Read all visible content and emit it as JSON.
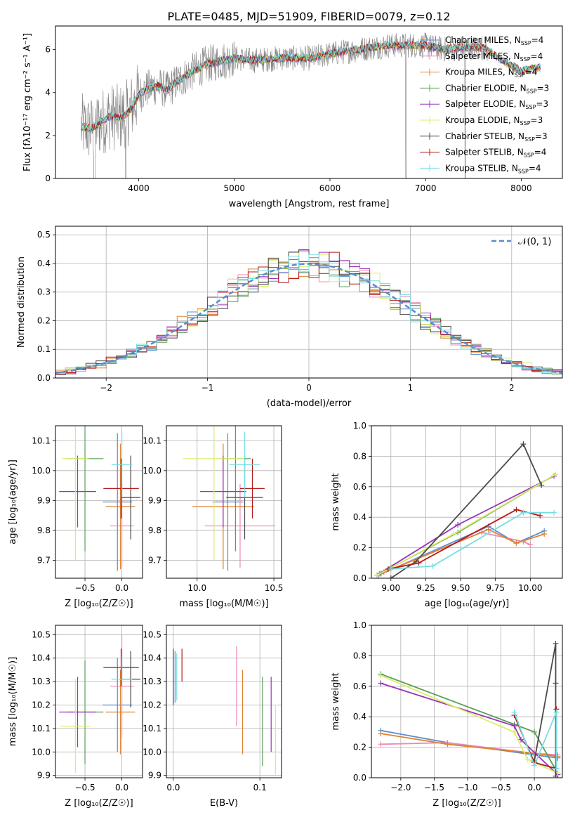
{
  "title": "PLATE=0485, MJD=51909, FIBERID=0079, z=0.12",
  "colors": {
    "Chabrier MILES": "#5b8ccf",
    "Salpeter MILES": "#ee88b8",
    "Kroupa MILES": "#e0822e",
    "Chabrier ELODIE": "#5a9e5a",
    "Salpeter ELODIE": "#9933bb",
    "Kroupa ELODIE": "#d8ef66",
    "Chabrier STELIB": "#4a4a4a",
    "Salpeter STELIB": "#b01818",
    "Kroupa STELIB": "#77dde2",
    "data": "#808080",
    "normal": "#5b8ccf"
  },
  "chart_data": [
    {
      "id": "spectrum",
      "type": "line",
      "xlabel": "wavelength [Angstrom, rest frame]",
      "ylabel": "Flux [fλ10⁻¹⁷ erg cm⁻² s⁻¹ A⁻¹]",
      "xlim": [
        3130,
        8430
      ],
      "ylim": [
        0,
        7.1
      ],
      "xticks": [
        4000,
        5000,
        6000,
        7000,
        8000
      ],
      "yticks": [
        0,
        2,
        4,
        6
      ],
      "legend_position": "top-right",
      "legend": [
        {
          "label": "Chabrier MILES, N",
          "sub": "SSP",
          "tail": "=4"
        },
        {
          "label": "Salpeter MILES, N",
          "sub": "SSP",
          "tail": "=4"
        },
        {
          "label": "Kroupa MILES, N",
          "sub": "SSP",
          "tail": "=4"
        },
        {
          "label": "Chabrier ELODIE, N",
          "sub": "SSP",
          "tail": "=3"
        },
        {
          "label": "Salpeter ELODIE, N",
          "sub": "SSP",
          "tail": "=3"
        },
        {
          "label": "Kroupa ELODIE, N",
          "sub": "SSP",
          "tail": "=3"
        },
        {
          "label": "Chabrier STELIB, N",
          "sub": "SSP",
          "tail": "=3"
        },
        {
          "label": "Salpeter STELIB, N",
          "sub": "SSP",
          "tail": "=4"
        },
        {
          "label": "Kroupa STELIB, N",
          "sub": "SSP",
          "tail": "=4"
        }
      ],
      "model_continuum": {
        "x": [
          3400,
          3500,
          3600,
          3700,
          3800,
          3900,
          4000,
          4100,
          4200,
          4300,
          4400,
          4500,
          4700,
          5000,
          5200,
          5500,
          5800,
          6000,
          6300,
          6600,
          6800,
          7000,
          7200,
          7400,
          7600,
          7800,
          8000,
          8200
        ],
        "y": [
          2.4,
          2.3,
          2.6,
          2.9,
          2.8,
          3.1,
          3.9,
          4.2,
          4.3,
          4.1,
          4.5,
          4.8,
          5.3,
          5.6,
          5.5,
          5.6,
          5.6,
          5.8,
          6.0,
          6.2,
          6.2,
          6.2,
          6.0,
          6.1,
          6.1,
          5.5,
          5.0,
          5.2
        ]
      }
    },
    {
      "id": "residuals",
      "type": "line",
      "xlabel": "(data-model)/error",
      "ylabel": "Normed distribution",
      "xlim": [
        -2.5,
        2.5
      ],
      "ylim": [
        0,
        0.53
      ],
      "xticks": [
        -2,
        -1,
        0,
        1,
        2
      ],
      "yticks": [
        0.0,
        0.1,
        0.2,
        0.3,
        0.4,
        0.5
      ],
      "legend": "𝒩(0, 1)",
      "legend_position": "top-right"
    },
    {
      "id": "Z_age",
      "type": "scatter",
      "xlabel": "Z [log₁₀(Z/Z☉)]",
      "ylabel": "age  [log₁₀(age/yr)]",
      "xlim": [
        -0.9,
        0.28
      ],
      "ylim": [
        9.64,
        10.15
      ],
      "xticks": [
        -0.5,
        0.0
      ],
      "yticks": [
        9.7,
        9.8,
        9.9,
        10.0,
        10.1
      ],
      "points": [
        {
          "model": "Chabrier MILES",
          "x": -0.06,
          "y": 9.895,
          "xerr": 0.2,
          "yerr": 0.23
        },
        {
          "model": "Salpeter MILES",
          "x": 0.0,
          "y": 9.815,
          "xerr": 0.16,
          "yerr": 0.14
        },
        {
          "model": "Kroupa MILES",
          "x": -0.02,
          "y": 9.88,
          "xerr": 0.2,
          "yerr": 0.21
        },
        {
          "model": "Chabrier ELODIE",
          "x": -0.5,
          "y": 10.04,
          "xerr": 0.25,
          "yerr": 0.31
        },
        {
          "model": "Salpeter ELODIE",
          "x": -0.6,
          "y": 9.93,
          "xerr": 0.25,
          "yerr": 0.12
        },
        {
          "model": "Kroupa ELODIE",
          "x": -0.63,
          "y": 10.04,
          "xerr": 0.18,
          "yerr": 0.34
        },
        {
          "model": "Chabrier STELIB",
          "x": 0.12,
          "y": 9.91,
          "xerr": 0.13,
          "yerr": 0.14
        },
        {
          "model": "Salpeter STELIB",
          "x": -0.01,
          "y": 9.94,
          "xerr": 0.24,
          "yerr": 0.1
        },
        {
          "model": "Kroupa STELIB",
          "x": 0.0,
          "y": 10.02,
          "xerr": 0.14,
          "yerr": 0.11
        }
      ]
    },
    {
      "id": "mass_age",
      "type": "scatter",
      "xlabel": "mass [log₁₀(M/M☉)]",
      "ylabel": "",
      "xlim": [
        9.8,
        10.55
      ],
      "ylim": [
        9.64,
        10.15
      ],
      "xticks": [
        10.0,
        10.5
      ],
      "yticks": [
        9.7,
        9.8,
        9.9,
        10.0,
        10.1
      ],
      "points": [
        {
          "model": "Chabrier MILES",
          "x": 10.2,
          "y": 9.895,
          "xerr": 0.1,
          "yerr": 0.23
        },
        {
          "model": "Salpeter MILES",
          "x": 10.28,
          "y": 9.815,
          "xerr": 0.23,
          "yerr": 0.14
        },
        {
          "model": "Kroupa MILES",
          "x": 10.17,
          "y": 9.88,
          "xerr": 0.2,
          "yerr": 0.21
        },
        {
          "model": "Chabrier ELODIE",
          "x": 10.25,
          "y": 10.04,
          "xerr": 0.1,
          "yerr": 0.31
        },
        {
          "model": "Salpeter ELODIE",
          "x": 10.17,
          "y": 9.93,
          "xerr": 0.15,
          "yerr": 0.12
        },
        {
          "model": "Kroupa ELODIE",
          "x": 10.11,
          "y": 10.04,
          "xerr": 0.2,
          "yerr": 0.34
        },
        {
          "model": "Chabrier STELIB",
          "x": 10.31,
          "y": 9.91,
          "xerr": 0.12,
          "yerr": 0.14
        },
        {
          "model": "Salpeter STELIB",
          "x": 10.36,
          "y": 9.94,
          "xerr": 0.08,
          "yerr": 0.1
        },
        {
          "model": "Kroupa STELIB",
          "x": 10.31,
          "y": 10.02,
          "xerr": 0.1,
          "yerr": 0.11
        }
      ]
    },
    {
      "id": "age_weights",
      "type": "line",
      "xlabel": "age  [log₁₀(age/yr)]",
      "ylabel": "mass weight",
      "xlim": [
        8.86,
        10.23
      ],
      "ylim": [
        0,
        1.0
      ],
      "xticks": [
        9.0,
        9.25,
        9.5,
        9.75,
        10.0
      ],
      "yticks": [
        0.0,
        0.2,
        0.4,
        0.6,
        0.8,
        1.0
      ],
      "series": [
        {
          "model": "Chabrier MILES",
          "x": [
            8.91,
            9.7,
            9.9,
            10.1
          ],
          "y": [
            0.02,
            0.34,
            0.23,
            0.31
          ]
        },
        {
          "model": "Salpeter MILES",
          "x": [
            8.95,
            9.65,
            9.95,
            10.0
          ],
          "y": [
            0.04,
            0.3,
            0.24,
            0.22
          ]
        },
        {
          "model": "Kroupa MILES",
          "x": [
            8.93,
            9.7,
            9.9,
            10.1
          ],
          "y": [
            0.03,
            0.32,
            0.23,
            0.29
          ]
        },
        {
          "model": "Chabrier ELODIE",
          "x": [
            8.92,
            9.48,
            10.18
          ],
          "y": [
            0.03,
            0.3,
            0.68
          ]
        },
        {
          "model": "Salpeter ELODIE",
          "x": [
            8.9,
            9.48,
            10.17
          ],
          "y": [
            0.02,
            0.35,
            0.67
          ]
        },
        {
          "model": "Kroupa ELODIE",
          "x": [
            8.9,
            9.45,
            10.18
          ],
          "y": [
            0.02,
            0.29,
            0.68
          ]
        },
        {
          "model": "Chabrier STELIB",
          "x": [
            9.0,
            9.18,
            9.95,
            10.08
          ],
          "y": [
            0.0,
            0.11,
            0.88,
            0.61
          ]
        },
        {
          "model": "Salpeter STELIB",
          "x": [
            8.98,
            9.2,
            9.9,
            10.07
          ],
          "y": [
            0.06,
            0.1,
            0.45,
            0.41
          ]
        },
        {
          "model": "Kroupa STELIB",
          "x": [
            9.0,
            9.3,
            9.95,
            10.17
          ],
          "y": [
            0.06,
            0.08,
            0.43,
            0.43
          ]
        }
      ]
    },
    {
      "id": "Z_mass",
      "type": "scatter",
      "xlabel": "Z [log₁₀(Z/Z☉)]",
      "ylabel": "mass [log₁₀(M/M☉)]",
      "xlim": [
        -0.9,
        0.28
      ],
      "ylim": [
        9.89,
        10.54
      ],
      "xticks": [
        -0.5,
        0.0
      ],
      "yticks": [
        9.9,
        10.0,
        10.1,
        10.2,
        10.3,
        10.4,
        10.5
      ],
      "points": [
        {
          "model": "Chabrier MILES",
          "x": -0.06,
          "y": 10.2,
          "xerr": 0.2,
          "yerr": 0.2
        },
        {
          "model": "Salpeter MILES",
          "x": 0.0,
          "y": 10.28,
          "xerr": 0.16,
          "yerr": 0.22
        },
        {
          "model": "Kroupa MILES",
          "x": -0.02,
          "y": 10.17,
          "xerr": 0.2,
          "yerr": 0.18
        },
        {
          "model": "Chabrier ELODIE",
          "x": -0.5,
          "y": 10.17,
          "xerr": 0.25,
          "yerr": 0.22
        },
        {
          "model": "Salpeter ELODIE",
          "x": -0.6,
          "y": 10.17,
          "xerr": 0.25,
          "yerr": 0.15
        },
        {
          "model": "Kroupa ELODIE",
          "x": -0.63,
          "y": 10.11,
          "xerr": 0.2,
          "yerr": 0.2
        },
        {
          "model": "Chabrier STELIB",
          "x": 0.12,
          "y": 10.31,
          "xerr": 0.13,
          "yerr": 0.12
        },
        {
          "model": "Salpeter STELIB",
          "x": -0.01,
          "y": 10.36,
          "xerr": 0.24,
          "yerr": 0.08
        },
        {
          "model": "Kroupa STELIB",
          "x": 0.0,
          "y": 10.31,
          "xerr": 0.14,
          "yerr": 0.1
        }
      ]
    },
    {
      "id": "ebv_mass",
      "type": "scatter",
      "xlabel": "E(B-V)",
      "ylabel": "",
      "xlim": [
        -0.008,
        0.125
      ],
      "ylim": [
        9.89,
        10.54
      ],
      "xticks": [
        0.0,
        0.1
      ],
      "yticks": [
        9.9,
        10.0,
        10.1,
        10.2,
        10.3,
        10.4,
        10.5
      ],
      "points": [
        {
          "model": "Chabrier MILES",
          "x": 0.002,
          "y": 10.32,
          "yerr": 0.11
        },
        {
          "model": "Salpeter MILES",
          "x": 0.073,
          "y": 10.28,
          "yerr": 0.17
        },
        {
          "model": "Kroupa MILES",
          "x": 0.08,
          "y": 10.17,
          "yerr": 0.18
        },
        {
          "model": "Chabrier ELODIE",
          "x": 0.103,
          "y": 10.13,
          "yerr": 0.19
        },
        {
          "model": "Salpeter ELODIE",
          "x": 0.113,
          "y": 10.16,
          "yerr": 0.16
        },
        {
          "model": "Kroupa ELODIE",
          "x": 0.118,
          "y": 10.05,
          "yerr": 0.15
        },
        {
          "model": "Chabrier STELIB",
          "x": 0.0,
          "y": 10.32,
          "yerr": 0.12
        },
        {
          "model": "Salpeter STELIB",
          "x": 0.01,
          "y": 10.37,
          "yerr": 0.07
        },
        {
          "model": "Kroupa STELIB",
          "x": 0.004,
          "y": 10.32,
          "yerr": 0.1
        }
      ]
    },
    {
      "id": "Z_weights",
      "type": "line",
      "xlabel": "Z [log₁₀(Z/Z☉)]",
      "ylabel": "mass weight",
      "xlim": [
        -2.44,
        0.42
      ],
      "ylim": [
        0,
        1.0
      ],
      "xticks": [
        -2.0,
        -1.5,
        -1.0,
        -0.5,
        0.0
      ],
      "yticks": [
        0.0,
        0.2,
        0.4,
        0.6,
        0.8,
        1.0
      ],
      "series": [
        {
          "model": "Chabrier MILES",
          "x": [
            -2.3,
            -1.3,
            0.0,
            0.35
          ],
          "y": [
            0.31,
            0.23,
            0.15,
            0.13
          ]
        },
        {
          "model": "Salpeter MILES",
          "x": [
            -2.3,
            -1.3,
            0.0,
            0.35
          ],
          "y": [
            0.22,
            0.23,
            0.16,
            0.15
          ]
        },
        {
          "model": "Kroupa MILES",
          "x": [
            -2.3,
            -1.3,
            0.0,
            0.35
          ],
          "y": [
            0.29,
            0.22,
            0.16,
            0.14
          ]
        },
        {
          "model": "Chabrier ELODIE",
          "x": [
            -2.3,
            -0.3,
            0.0,
            0.35
          ],
          "y": [
            0.68,
            0.35,
            0.3,
            0.03
          ]
        },
        {
          "model": "Salpeter ELODIE",
          "x": [
            -2.3,
            -0.3,
            -0.2,
            0.35
          ],
          "y": [
            0.62,
            0.34,
            0.25,
            0.02
          ]
        },
        {
          "model": "Kroupa ELODIE",
          "x": [
            -2.3,
            -0.3,
            -0.1,
            0.35
          ],
          "y": [
            0.67,
            0.3,
            0.12,
            0.03
          ]
        },
        {
          "model": "Chabrier STELIB",
          "x": [
            0.0,
            0.32,
            0.32,
            0.32
          ],
          "y": [
            0.11,
            0.88,
            0.62,
            0.01
          ]
        },
        {
          "model": "Salpeter STELIB",
          "x": [
            -0.3,
            0.0,
            0.33,
            0.33
          ],
          "y": [
            0.41,
            0.1,
            0.06,
            0.45
          ]
        },
        {
          "model": "Kroupa STELIB",
          "x": [
            -0.3,
            0.0,
            0.33,
            0.33
          ],
          "y": [
            0.43,
            0.08,
            0.43,
            0.06
          ]
        }
      ]
    }
  ]
}
